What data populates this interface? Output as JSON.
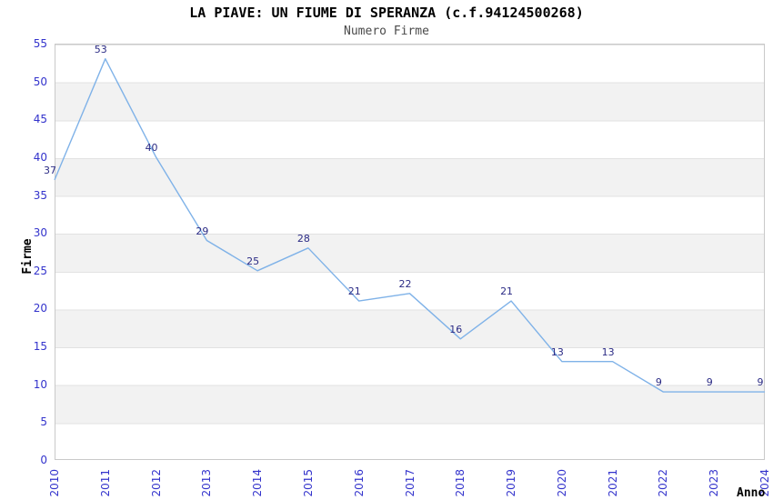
{
  "page": {
    "background": "#ffffff"
  },
  "chart_data": {
    "type": "line",
    "title": "LA PIAVE: UN FIUME DI SPERANZA (c.f.94124500268)",
    "subtitle": "Numero Firme",
    "xlabel": "Anno",
    "ylabel": "Firme",
    "categories": [
      "2010",
      "2011",
      "2012",
      "2013",
      "2014",
      "2015",
      "2016",
      "2017",
      "2018",
      "2019",
      "2020",
      "2021",
      "2022",
      "2023",
      "2024"
    ],
    "values": [
      37,
      53,
      40,
      29,
      25,
      28,
      21,
      22,
      16,
      21,
      13,
      13,
      9,
      9,
      9
    ],
    "ylim": [
      0,
      55
    ],
    "y_ticks": [
      0,
      5,
      10,
      15,
      20,
      25,
      30,
      35,
      40,
      45,
      50,
      55
    ],
    "x_tick_rotation": -90,
    "legend": "none",
    "grid": "horizontal-bands-alternating",
    "data_labels_visible": true,
    "markers": "none",
    "colors": {
      "line": "#7fb2e8",
      "tick_label": "#3333cc",
      "data_label": "#2b2b85",
      "band": "#f2f2f2",
      "grid_line": "#e2e2e2",
      "plot_border": "#c9c9c9",
      "title": "#000000",
      "subtitle": "#4a4a4a",
      "axis_title": "#000000"
    }
  }
}
